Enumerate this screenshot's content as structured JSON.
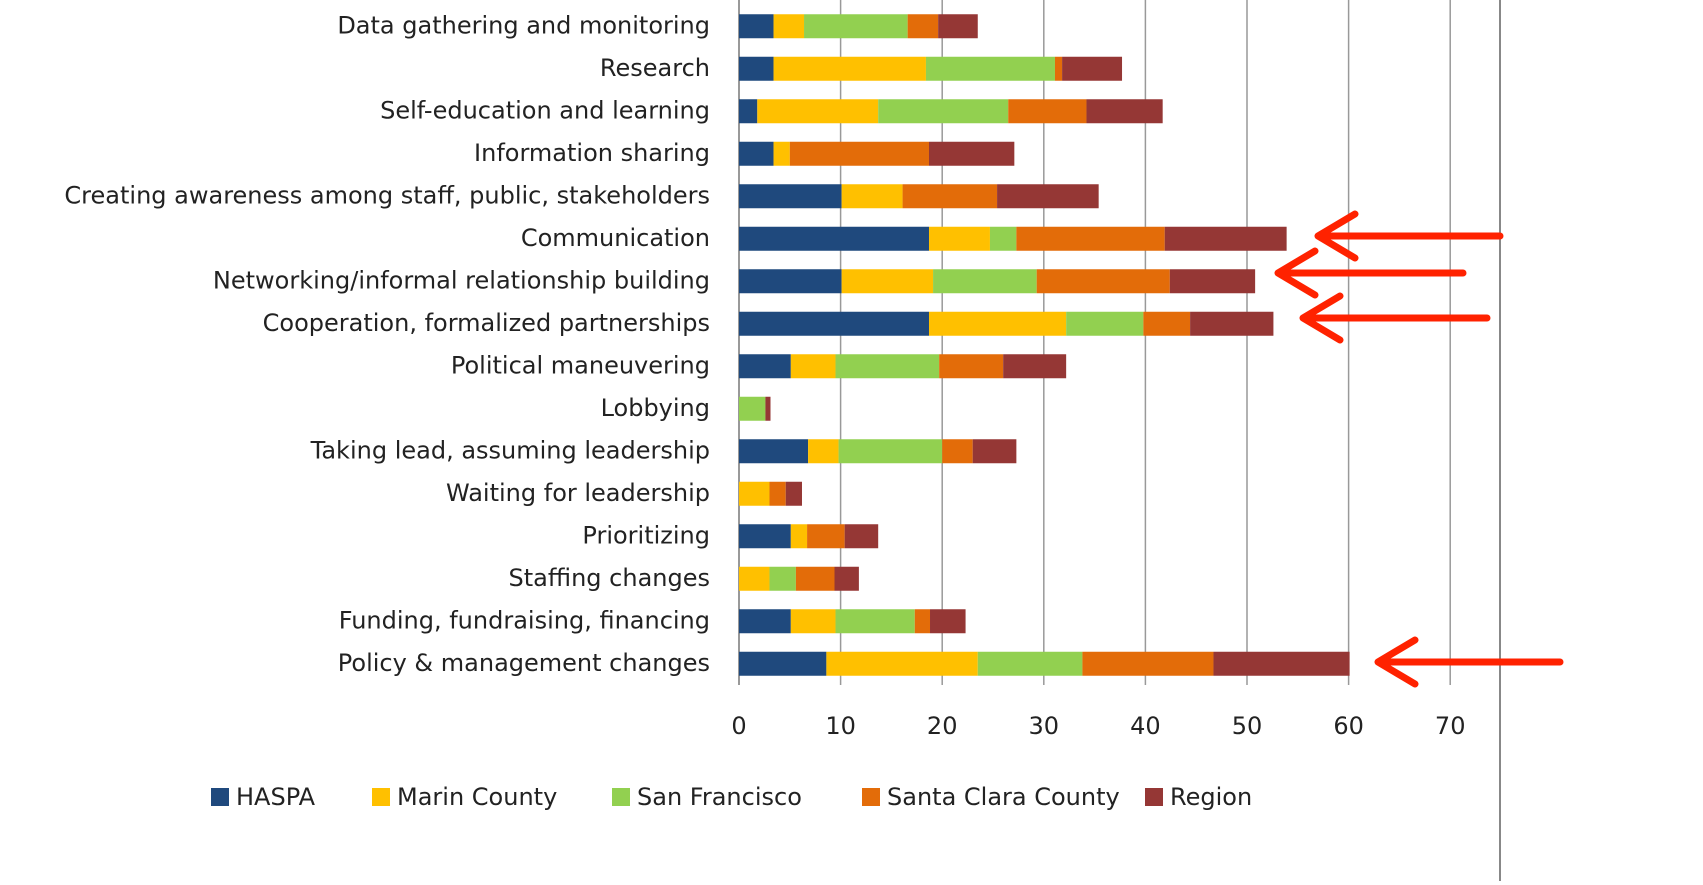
{
  "chart_data": {
    "type": "bar",
    "orientation": "horizontal",
    "stacked": true,
    "grid": true,
    "legend": "bottom",
    "categories": [
      "Data gathering and monitoring",
      "Research",
      "Self-education and learning",
      "Information sharing",
      "Creating awareness among staff, public, stakeholders",
      "Communication",
      "Networking/informal relationship building",
      "Cooperation, formalized partnerships",
      "Political maneuvering",
      "Lobbying",
      "Taking lead, assuming leadership",
      "Waiting for leadership",
      "Prioritizing",
      "Staffing changes",
      "Funding, fundraising, financing",
      "Policy & management changes"
    ],
    "series": [
      {
        "name": "HASPA",
        "color": "#1f497d",
        "values": [
          3.4,
          3.4,
          1.8,
          3.4,
          10.1,
          18.7,
          10.1,
          18.7,
          5.1,
          0,
          6.8,
          0,
          5.1,
          0,
          5.1,
          8.6
        ]
      },
      {
        "name": "Marin County",
        "color": "#ffc000",
        "values": [
          3.0,
          15.0,
          11.9,
          1.6,
          6.0,
          6.0,
          9.0,
          13.5,
          4.4,
          0,
          3.0,
          3.0,
          1.6,
          3.0,
          4.4,
          14.9
        ]
      },
      {
        "name": "San Francisco",
        "color": "#92d050",
        "values": [
          10.2,
          12.7,
          12.8,
          0,
          0,
          2.6,
          10.2,
          7.6,
          10.2,
          2.6,
          10.2,
          0,
          0,
          2.6,
          7.8,
          10.3
        ]
      },
      {
        "name": "Santa Clara County",
        "color": "#e36c09",
        "values": [
          3.0,
          0.7,
          7.7,
          13.7,
          9.3,
          14.6,
          13.1,
          4.6,
          6.3,
          0,
          3.0,
          1.6,
          3.7,
          3.8,
          1.5,
          12.9
        ]
      },
      {
        "name": "Region",
        "color": "#953735",
        "values": [
          3.9,
          5.9,
          7.5,
          8.4,
          10.0,
          12.0,
          8.4,
          8.2,
          6.2,
          0.5,
          4.3,
          1.6,
          3.3,
          2.4,
          3.5,
          13.4
        ]
      }
    ],
    "xlim": [
      0,
      75
    ],
    "xticks": [
      0,
      10,
      20,
      30,
      40,
      50,
      60,
      70
    ]
  }
}
